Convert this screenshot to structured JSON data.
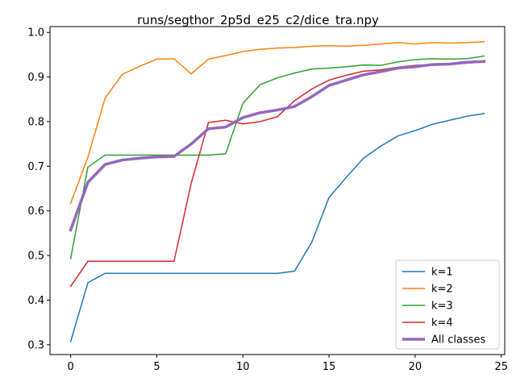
{
  "chart_data": {
    "type": "line",
    "title": "runs/segthor_2p5d_e25_c2/dice_tra.npy",
    "xlabel": "",
    "ylabel": "",
    "xlim": [
      -1.2,
      25.2
    ],
    "ylim": [
      0.278,
      1.013
    ],
    "xticks": [
      0,
      5,
      10,
      15,
      20,
      25
    ],
    "yticks": [
      0.3,
      0.4,
      0.5,
      0.6,
      0.7,
      0.8,
      0.9,
      1.0
    ],
    "xtick_labels": [
      "0",
      "5",
      "10",
      "15",
      "20",
      "25"
    ],
    "ytick_labels": [
      "0.3",
      "0.4",
      "0.5",
      "0.6",
      "0.7",
      "0.8",
      "0.9",
      "1.0"
    ],
    "grid": false,
    "legend_position": "lower-right",
    "x": [
      0,
      1,
      2,
      3,
      4,
      5,
      6,
      7,
      8,
      9,
      10,
      11,
      12,
      13,
      14,
      15,
      16,
      17,
      18,
      19,
      20,
      21,
      22,
      23,
      24
    ],
    "series": [
      {
        "name": "k=1",
        "color": "#1f77b4",
        "width": 1.5,
        "values": [
          0.307,
          0.439,
          0.46,
          0.46,
          0.46,
          0.46,
          0.46,
          0.46,
          0.46,
          0.46,
          0.46,
          0.46,
          0.46,
          0.465,
          0.53,
          0.63,
          0.675,
          0.718,
          0.745,
          0.768,
          0.78,
          0.794,
          0.803,
          0.812,
          0.818
        ]
      },
      {
        "name": "k=2",
        "color": "#ff7f0e",
        "width": 1.5,
        "values": [
          0.617,
          0.72,
          0.853,
          0.906,
          0.924,
          0.94,
          0.941,
          0.907,
          0.94,
          0.948,
          0.957,
          0.962,
          0.965,
          0.966,
          0.969,
          0.97,
          0.969,
          0.971,
          0.974,
          0.977,
          0.974,
          0.977,
          0.976,
          0.977,
          0.979
        ]
      },
      {
        "name": "k=3",
        "color": "#2ca02c",
        "width": 1.5,
        "values": [
          0.493,
          0.698,
          0.725,
          0.725,
          0.725,
          0.725,
          0.725,
          0.725,
          0.725,
          0.728,
          0.841,
          0.883,
          0.898,
          0.909,
          0.918,
          0.92,
          0.923,
          0.927,
          0.926,
          0.934,
          0.939,
          0.941,
          0.94,
          0.941,
          0.947
        ]
      },
      {
        "name": "k=4",
        "color": "#d62728",
        "width": 1.5,
        "values": [
          0.431,
          0.487,
          0.487,
          0.487,
          0.487,
          0.487,
          0.487,
          0.662,
          0.798,
          0.803,
          0.795,
          0.8,
          0.811,
          0.847,
          0.873,
          0.893,
          0.904,
          0.913,
          0.916,
          0.922,
          0.926,
          0.928,
          0.928,
          0.931,
          0.934
        ]
      },
      {
        "name": "All classes",
        "color": "#9467bd",
        "width": 3.5,
        "values": [
          0.557,
          0.664,
          0.704,
          0.714,
          0.718,
          0.721,
          0.722,
          0.75,
          0.784,
          0.788,
          0.809,
          0.82,
          0.826,
          0.834,
          0.856,
          0.881,
          0.893,
          0.905,
          0.912,
          0.92,
          0.923,
          0.928,
          0.929,
          0.933,
          0.935
        ]
      }
    ]
  }
}
